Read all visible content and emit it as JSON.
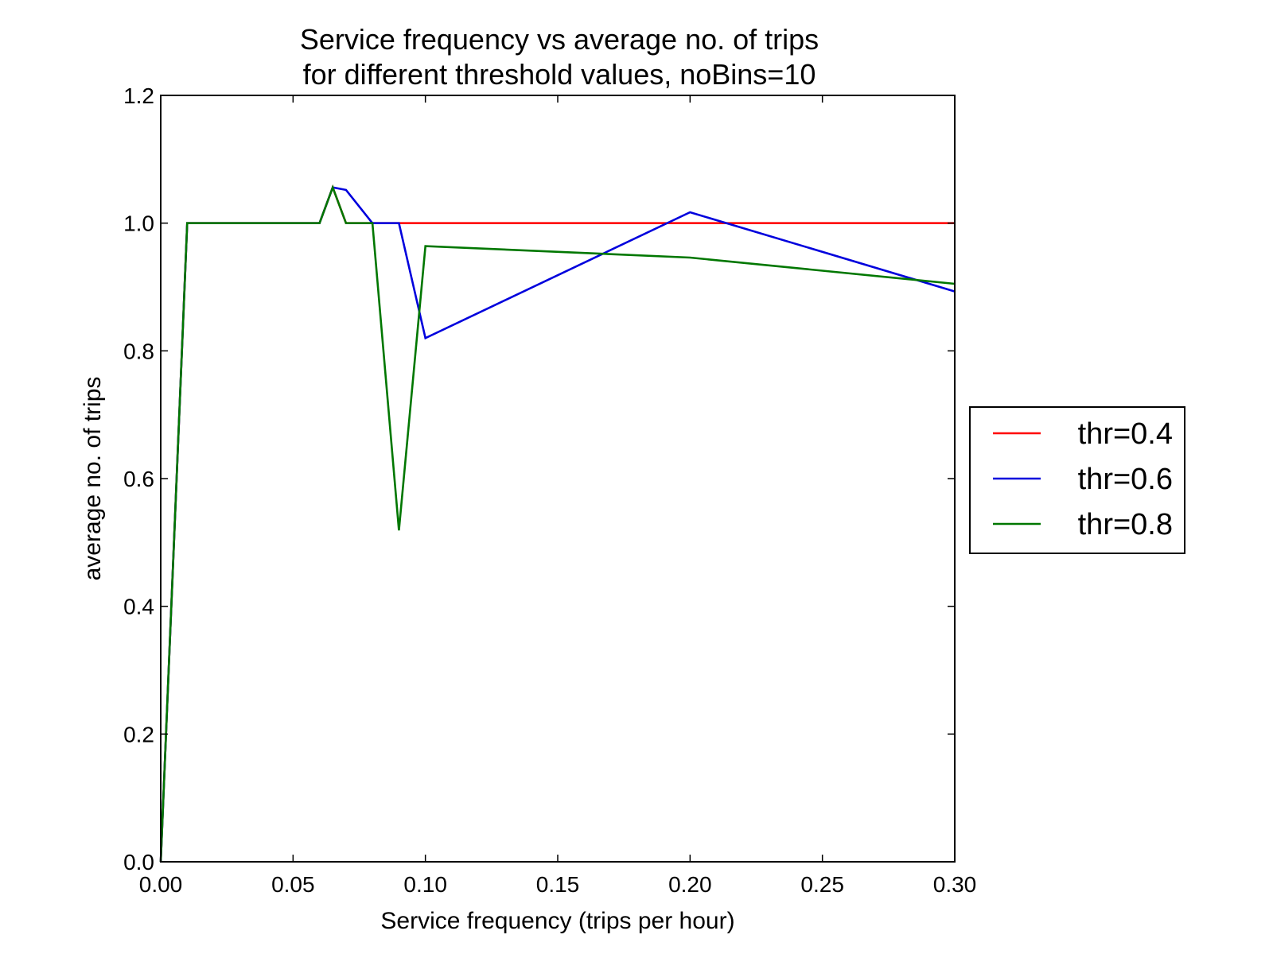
{
  "chart_data": {
    "type": "line",
    "title": "Service frequency vs average no. of trips",
    "subtitle": "for different threshold values, noBins=10",
    "xlabel": "Service frequency (trips per hour)",
    "ylabel": "average no. of trips",
    "xlim": [
      0.0,
      0.3
    ],
    "ylim": [
      0.0,
      1.2
    ],
    "xticks": [
      "0.00",
      "0.05",
      "0.10",
      "0.15",
      "0.20",
      "0.25",
      "0.30"
    ],
    "yticks": [
      "0.0",
      "0.2",
      "0.4",
      "0.6",
      "0.8",
      "1.0",
      "1.2"
    ],
    "grid": false,
    "legend_position": "right",
    "series": [
      {
        "name": "thr=0.4",
        "color": "#ff0000",
        "x": [
          0.0,
          0.01,
          0.06,
          0.065,
          0.07,
          0.08,
          0.09,
          0.1,
          0.2,
          0.3
        ],
        "y": [
          0.0,
          1.0,
          1.0,
          1.056,
          1.0,
          1.0,
          1.0,
          1.0,
          1.0,
          1.0
        ]
      },
      {
        "name": "thr=0.6",
        "color": "#0000dd",
        "x": [
          0.0,
          0.01,
          0.06,
          0.065,
          0.07,
          0.08,
          0.09,
          0.1,
          0.2,
          0.3
        ],
        "y": [
          0.0,
          1.0,
          1.0,
          1.056,
          1.052,
          1.0,
          1.0,
          0.82,
          1.017,
          0.893
        ]
      },
      {
        "name": "thr=0.8",
        "color": "#007700",
        "x": [
          0.0,
          0.01,
          0.06,
          0.065,
          0.07,
          0.08,
          0.09,
          0.1,
          0.2,
          0.3
        ],
        "y": [
          0.0,
          1.0,
          1.0,
          1.056,
          1.0,
          1.0,
          0.519,
          0.964,
          0.946,
          0.905
        ]
      }
    ]
  }
}
